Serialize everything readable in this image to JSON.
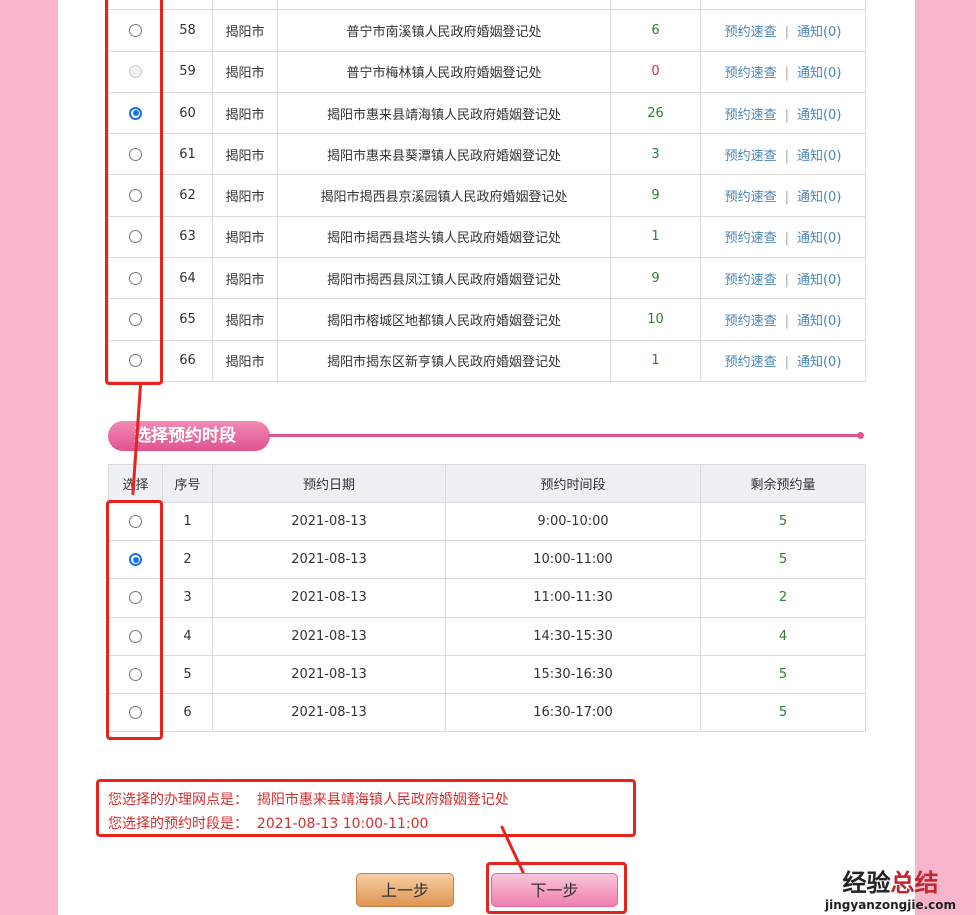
{
  "offices": {
    "rows": [
      {
        "no": "",
        "city": "",
        "name": "",
        "count": "",
        "link1": "",
        "link2": ""
      },
      {
        "no": "58",
        "city": "揭阳市",
        "name": "普宁市南溪镇人民政府婚姻登记处",
        "count": "6",
        "state": "off",
        "count_color": "green"
      },
      {
        "no": "59",
        "city": "揭阳市",
        "name": "普宁市梅林镇人民政府婚姻登记处",
        "count": "0",
        "state": "disabled",
        "count_color": "red"
      },
      {
        "no": "60",
        "city": "揭阳市",
        "name": "揭阳市惠来县靖海镇人民政府婚姻登记处",
        "count": "26",
        "state": "on",
        "count_color": "green"
      },
      {
        "no": "61",
        "city": "揭阳市",
        "name": "揭阳市惠来县葵潭镇人民政府婚姻登记处",
        "count": "3",
        "state": "off",
        "count_color": "green"
      },
      {
        "no": "62",
        "city": "揭阳市",
        "name": "揭阳市揭西县京溪园镇人民政府婚姻登记处",
        "count": "9",
        "state": "off",
        "count_color": "green"
      },
      {
        "no": "63",
        "city": "揭阳市",
        "name": "揭阳市揭西县塔头镇人民政府婚姻登记处",
        "count": "1",
        "state": "off",
        "count_color": "green"
      },
      {
        "no": "64",
        "city": "揭阳市",
        "name": "揭阳市揭西县凤江镇人民政府婚姻登记处",
        "count": "9",
        "state": "off",
        "count_color": "green"
      },
      {
        "no": "65",
        "city": "揭阳市",
        "name": "揭阳市榕城区地都镇人民政府婚姻登记处",
        "count": "10",
        "state": "off",
        "count_color": "green"
      },
      {
        "no": "66",
        "city": "揭阳市",
        "name": "揭阳市揭东区新亨镇人民政府婚姻登记处",
        "count": "1",
        "state": "off",
        "count_color": "green"
      }
    ],
    "link1": "预约速查",
    "link_sep": "|",
    "link2": "通知(0)"
  },
  "section_title": "选择预约时段",
  "slots": {
    "headers": [
      "选择",
      "序号",
      "预约日期",
      "预约时间段",
      "剩余预约量"
    ],
    "rows": [
      {
        "no": "1",
        "date": "2021-08-13",
        "time": "9:00-10:00",
        "left": "5",
        "state": "off"
      },
      {
        "no": "2",
        "date": "2021-08-13",
        "time": "10:00-11:00",
        "left": "5",
        "state": "on"
      },
      {
        "no": "3",
        "date": "2021-08-13",
        "time": "11:00-11:30",
        "left": "2",
        "state": "off"
      },
      {
        "no": "4",
        "date": "2021-08-13",
        "time": "14:30-15:30",
        "left": "4",
        "state": "off"
      },
      {
        "no": "5",
        "date": "2021-08-13",
        "time": "15:30-16:30",
        "left": "5",
        "state": "off"
      },
      {
        "no": "6",
        "date": "2021-08-13",
        "time": "16:30-17:00",
        "left": "5",
        "state": "off"
      }
    ]
  },
  "summary": {
    "office_label": "您选择的办理网点是：",
    "office_value": "揭阳市惠来县靖海镇人民政府婚姻登记处",
    "slot_label": "您选择的预约时段是：",
    "slot_value": "2021-08-13 10:00-11:00"
  },
  "buttons": {
    "prev": "上一步",
    "next": "下一步"
  },
  "watermark": {
    "line1a": "经验",
    "line1b": "总结",
    "line2": "jingyanzongjie.com"
  },
  "colors": {
    "accent": "#e0548f",
    "annotation": "#e8231e",
    "radio_selected": "#1a73e8"
  }
}
